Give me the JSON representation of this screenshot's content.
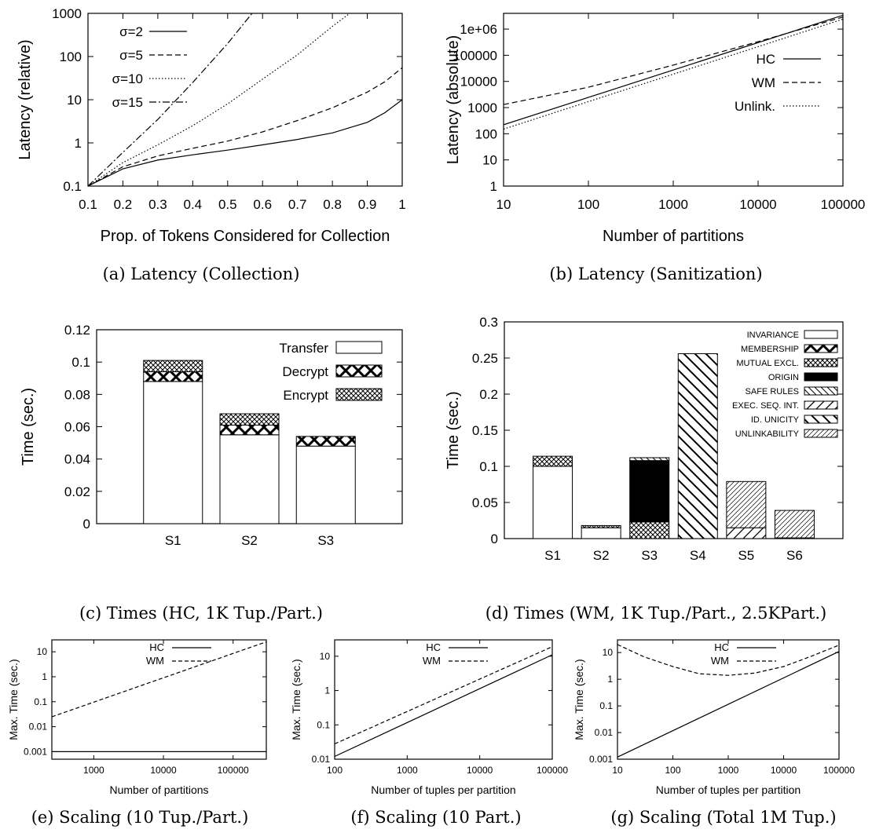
{
  "figure": {
    "captions": [
      "(a) Latency (Collection)",
      "(b) Latency (Sanitization)",
      "(c) Times (HC, 1K Tup./Part.)",
      "(d) Times (WM, 1K Tup./Part., 2.5KPart.)",
      "(e) Scaling (10 Tup./Part.)",
      "(f) Scaling (10 Part.)",
      "(g) Scaling (Total 1M Tup.)"
    ]
  },
  "chart_data": [
    {
      "id": "a",
      "type": "line",
      "caption": "(a) Latency (Collection)",
      "xlabel": "Prop. of Tokens Considered for Collection",
      "ylabel": "Latency (relative)",
      "xlim": [
        0.1,
        1
      ],
      "ylim": [
        0.1,
        1000
      ],
      "yscale": "log",
      "xticks": [
        "0.1",
        "0.2",
        "0.3",
        "0.4",
        "0.5",
        "0.6",
        "0.7",
        "0.8",
        "0.9",
        "1"
      ],
      "yticks": [
        "0.1",
        "1",
        "10",
        "100",
        "1000"
      ],
      "legend_position": "top-left",
      "series": [
        {
          "name": "σ=2",
          "style": "solid",
          "x": [
            0.1,
            0.2,
            0.3,
            0.4,
            0.5,
            0.6,
            0.7,
            0.8,
            0.9,
            0.95,
            1.0
          ],
          "y": [
            0.1,
            0.25,
            0.4,
            0.53,
            0.68,
            0.9,
            1.2,
            1.7,
            3.0,
            5.0,
            10.0
          ]
        },
        {
          "name": "σ=5",
          "style": "dashed",
          "x": [
            0.1,
            0.2,
            0.3,
            0.4,
            0.5,
            0.6,
            0.7,
            0.8,
            0.9,
            0.95,
            1.0
          ],
          "y": [
            0.1,
            0.28,
            0.5,
            0.75,
            1.1,
            1.8,
            3.3,
            6.5,
            15,
            26,
            55
          ]
        },
        {
          "name": "σ=10",
          "style": "dotted",
          "x": [
            0.1,
            0.2,
            0.3,
            0.4,
            0.5,
            0.6,
            0.7,
            0.8,
            0.85
          ],
          "y": [
            0.1,
            0.35,
            0.9,
            2.5,
            8,
            30,
            110,
            500,
            1000
          ]
        },
        {
          "name": "σ=15",
          "style": "dashdot",
          "x": [
            0.1,
            0.2,
            0.3,
            0.4,
            0.5,
            0.57
          ],
          "y": [
            0.1,
            0.6,
            3.5,
            25,
            200,
            1000
          ]
        }
      ]
    },
    {
      "id": "b",
      "type": "line",
      "caption": "(b) Latency (Sanitization)",
      "xlabel": "Number of partitions",
      "ylabel": "Latency (absolute)",
      "xscale": "log",
      "yscale": "log",
      "xlim": [
        10,
        100000
      ],
      "ylim": [
        1,
        4000000
      ],
      "xticks": [
        "10",
        "100",
        "1000",
        "10000",
        "100000"
      ],
      "yticks": [
        "1",
        "10",
        "100",
        "1000",
        "10000",
        "100000",
        "1e+06"
      ],
      "legend_position": "right",
      "series": [
        {
          "name": "HC",
          "style": "solid",
          "x": [
            10,
            100000
          ],
          "y": [
            220,
            3400000
          ]
        },
        {
          "name": "WM",
          "style": "dashed",
          "x": [
            10,
            100,
            1000,
            10000,
            100000
          ],
          "y": [
            1300,
            6000,
            42000,
            330000,
            2900000
          ]
        },
        {
          "name": "Unlink.",
          "style": "dotted",
          "x": [
            10,
            100000
          ],
          "y": [
            150,
            2400000
          ]
        }
      ]
    },
    {
      "id": "c",
      "type": "bar",
      "stacked": true,
      "caption": "(c) Times (HC, 1K Tup./Part.)",
      "ylabel": "Time (sec.)",
      "ylim": [
        0,
        0.12
      ],
      "yticks": [
        "0",
        "0.02",
        "0.04",
        "0.06",
        "0.08",
        "0.1",
        "0.12"
      ],
      "categories": [
        "S1",
        "S2",
        "S3"
      ],
      "legend_position": "top-right",
      "series": [
        {
          "name": "Transfer",
          "pattern": "white",
          "values": [
            0.088,
            0.055,
            0.048
          ]
        },
        {
          "name": "Decrypt",
          "pattern": "bigx",
          "values": [
            0.006,
            0.006,
            0.006
          ]
        },
        {
          "name": "Encrypt",
          "pattern": "smallx",
          "values": [
            0.007,
            0.007,
            0.0
          ]
        }
      ]
    },
    {
      "id": "d",
      "type": "bar",
      "stacked": true,
      "caption": "(d) Times (WM, 1K Tup./Part., 2.5KPart.)",
      "ylabel": "Time (sec.)",
      "ylim": [
        0,
        0.3
      ],
      "yticks": [
        "0",
        "0.05",
        "0.1",
        "0.15",
        "0.2",
        "0.25",
        "0.3"
      ],
      "categories": [
        "S1",
        "S2",
        "S3",
        "S4",
        "S5",
        "S6"
      ],
      "legend_position": "top-right",
      "series": [
        {
          "name": "INVARIANCE",
          "pattern": "white",
          "values": [
            0.1,
            0.015,
            0,
            0,
            0,
            0
          ]
        },
        {
          "name": "MEMBERSHIP",
          "pattern": "bigx",
          "values": [
            0,
            0,
            0,
            0,
            0,
            0
          ]
        },
        {
          "name": "MUTUAL EXCL.",
          "pattern": "smallx",
          "values": [
            0.014,
            0.003,
            0.023,
            0,
            0,
            0
          ]
        },
        {
          "name": "ORIGIN",
          "pattern": "black",
          "values": [
            0,
            0,
            0.085,
            0,
            0,
            0
          ]
        },
        {
          "name": "SAFE RULES",
          "pattern": "backslash-thin",
          "values": [
            0,
            0,
            0.004,
            0,
            0,
            0
          ]
        },
        {
          "name": "EXEC. SEQ. INT.",
          "pattern": "slash",
          "values": [
            0,
            0,
            0,
            0,
            0.015,
            0.001
          ]
        },
        {
          "name": "ID. UNICITY",
          "pattern": "backslash",
          "values": [
            0,
            0,
            0,
            0.256,
            0,
            0
          ]
        },
        {
          "name": "UNLINKABILITY",
          "pattern": "slash-dense",
          "values": [
            0,
            0,
            0,
            0,
            0.064,
            0.038
          ]
        }
      ]
    },
    {
      "id": "e",
      "type": "line",
      "caption": "(e) Scaling (10 Tup./Part.)",
      "xlabel": "Number of partitions",
      "ylabel": "Max. Time (sec.)",
      "xscale": "log",
      "yscale": "log",
      "xlim": [
        250,
        300000
      ],
      "ylim": [
        0.0005,
        30
      ],
      "xticks": [
        "1000",
        "10000",
        "100000"
      ],
      "yticks": [
        "0.001",
        "0.01",
        "0.1",
        "1",
        "10"
      ],
      "legend_position": "top-center",
      "series": [
        {
          "name": "HC",
          "style": "solid",
          "x": [
            250,
            300000
          ],
          "y": [
            0.001,
            0.001
          ]
        },
        {
          "name": "WM",
          "style": "dashed",
          "x": [
            250,
            300000
          ],
          "y": [
            0.025,
            25
          ]
        }
      ]
    },
    {
      "id": "f",
      "type": "line",
      "caption": "(f) Scaling (10 Part.)",
      "xlabel": "Number of tuples per partition",
      "ylabel": "Max. Time (sec.)",
      "xscale": "log",
      "yscale": "log",
      "xlim": [
        100,
        100000
      ],
      "ylim": [
        0.01,
        30
      ],
      "xticks": [
        "100",
        "1000",
        "10000",
        "100000"
      ],
      "yticks": [
        "0.01",
        "0.1",
        "1",
        "10"
      ],
      "legend_position": "top-center",
      "series": [
        {
          "name": "HC",
          "style": "solid",
          "x": [
            100,
            100000
          ],
          "y": [
            0.012,
            11
          ]
        },
        {
          "name": "WM",
          "style": "dashed",
          "x": [
            100,
            100000
          ],
          "y": [
            0.028,
            19
          ]
        }
      ]
    },
    {
      "id": "g",
      "type": "line",
      "caption": "(g) Scaling (Total 1M Tup.)",
      "xlabel": "Number of tuples per partition",
      "ylabel": "Max. Time (sec.)",
      "xscale": "log",
      "yscale": "log",
      "xlim": [
        10,
        100000
      ],
      "ylim": [
        0.001,
        30
      ],
      "xticks": [
        "10",
        "100",
        "1000",
        "10000",
        "100000"
      ],
      "yticks": [
        "0.001",
        "0.01",
        "0.1",
        "1",
        "10"
      ],
      "legend_position": "top-center",
      "series": [
        {
          "name": "HC",
          "style": "solid",
          "x": [
            10,
            100000
          ],
          "y": [
            0.0012,
            11
          ]
        },
        {
          "name": "WM",
          "style": "dashed",
          "x": [
            10,
            30,
            100,
            300,
            1000,
            3000,
            10000,
            30000,
            100000
          ],
          "y": [
            20,
            7,
            3,
            1.6,
            1.4,
            1.7,
            3,
            7,
            19
          ]
        }
      ]
    }
  ]
}
